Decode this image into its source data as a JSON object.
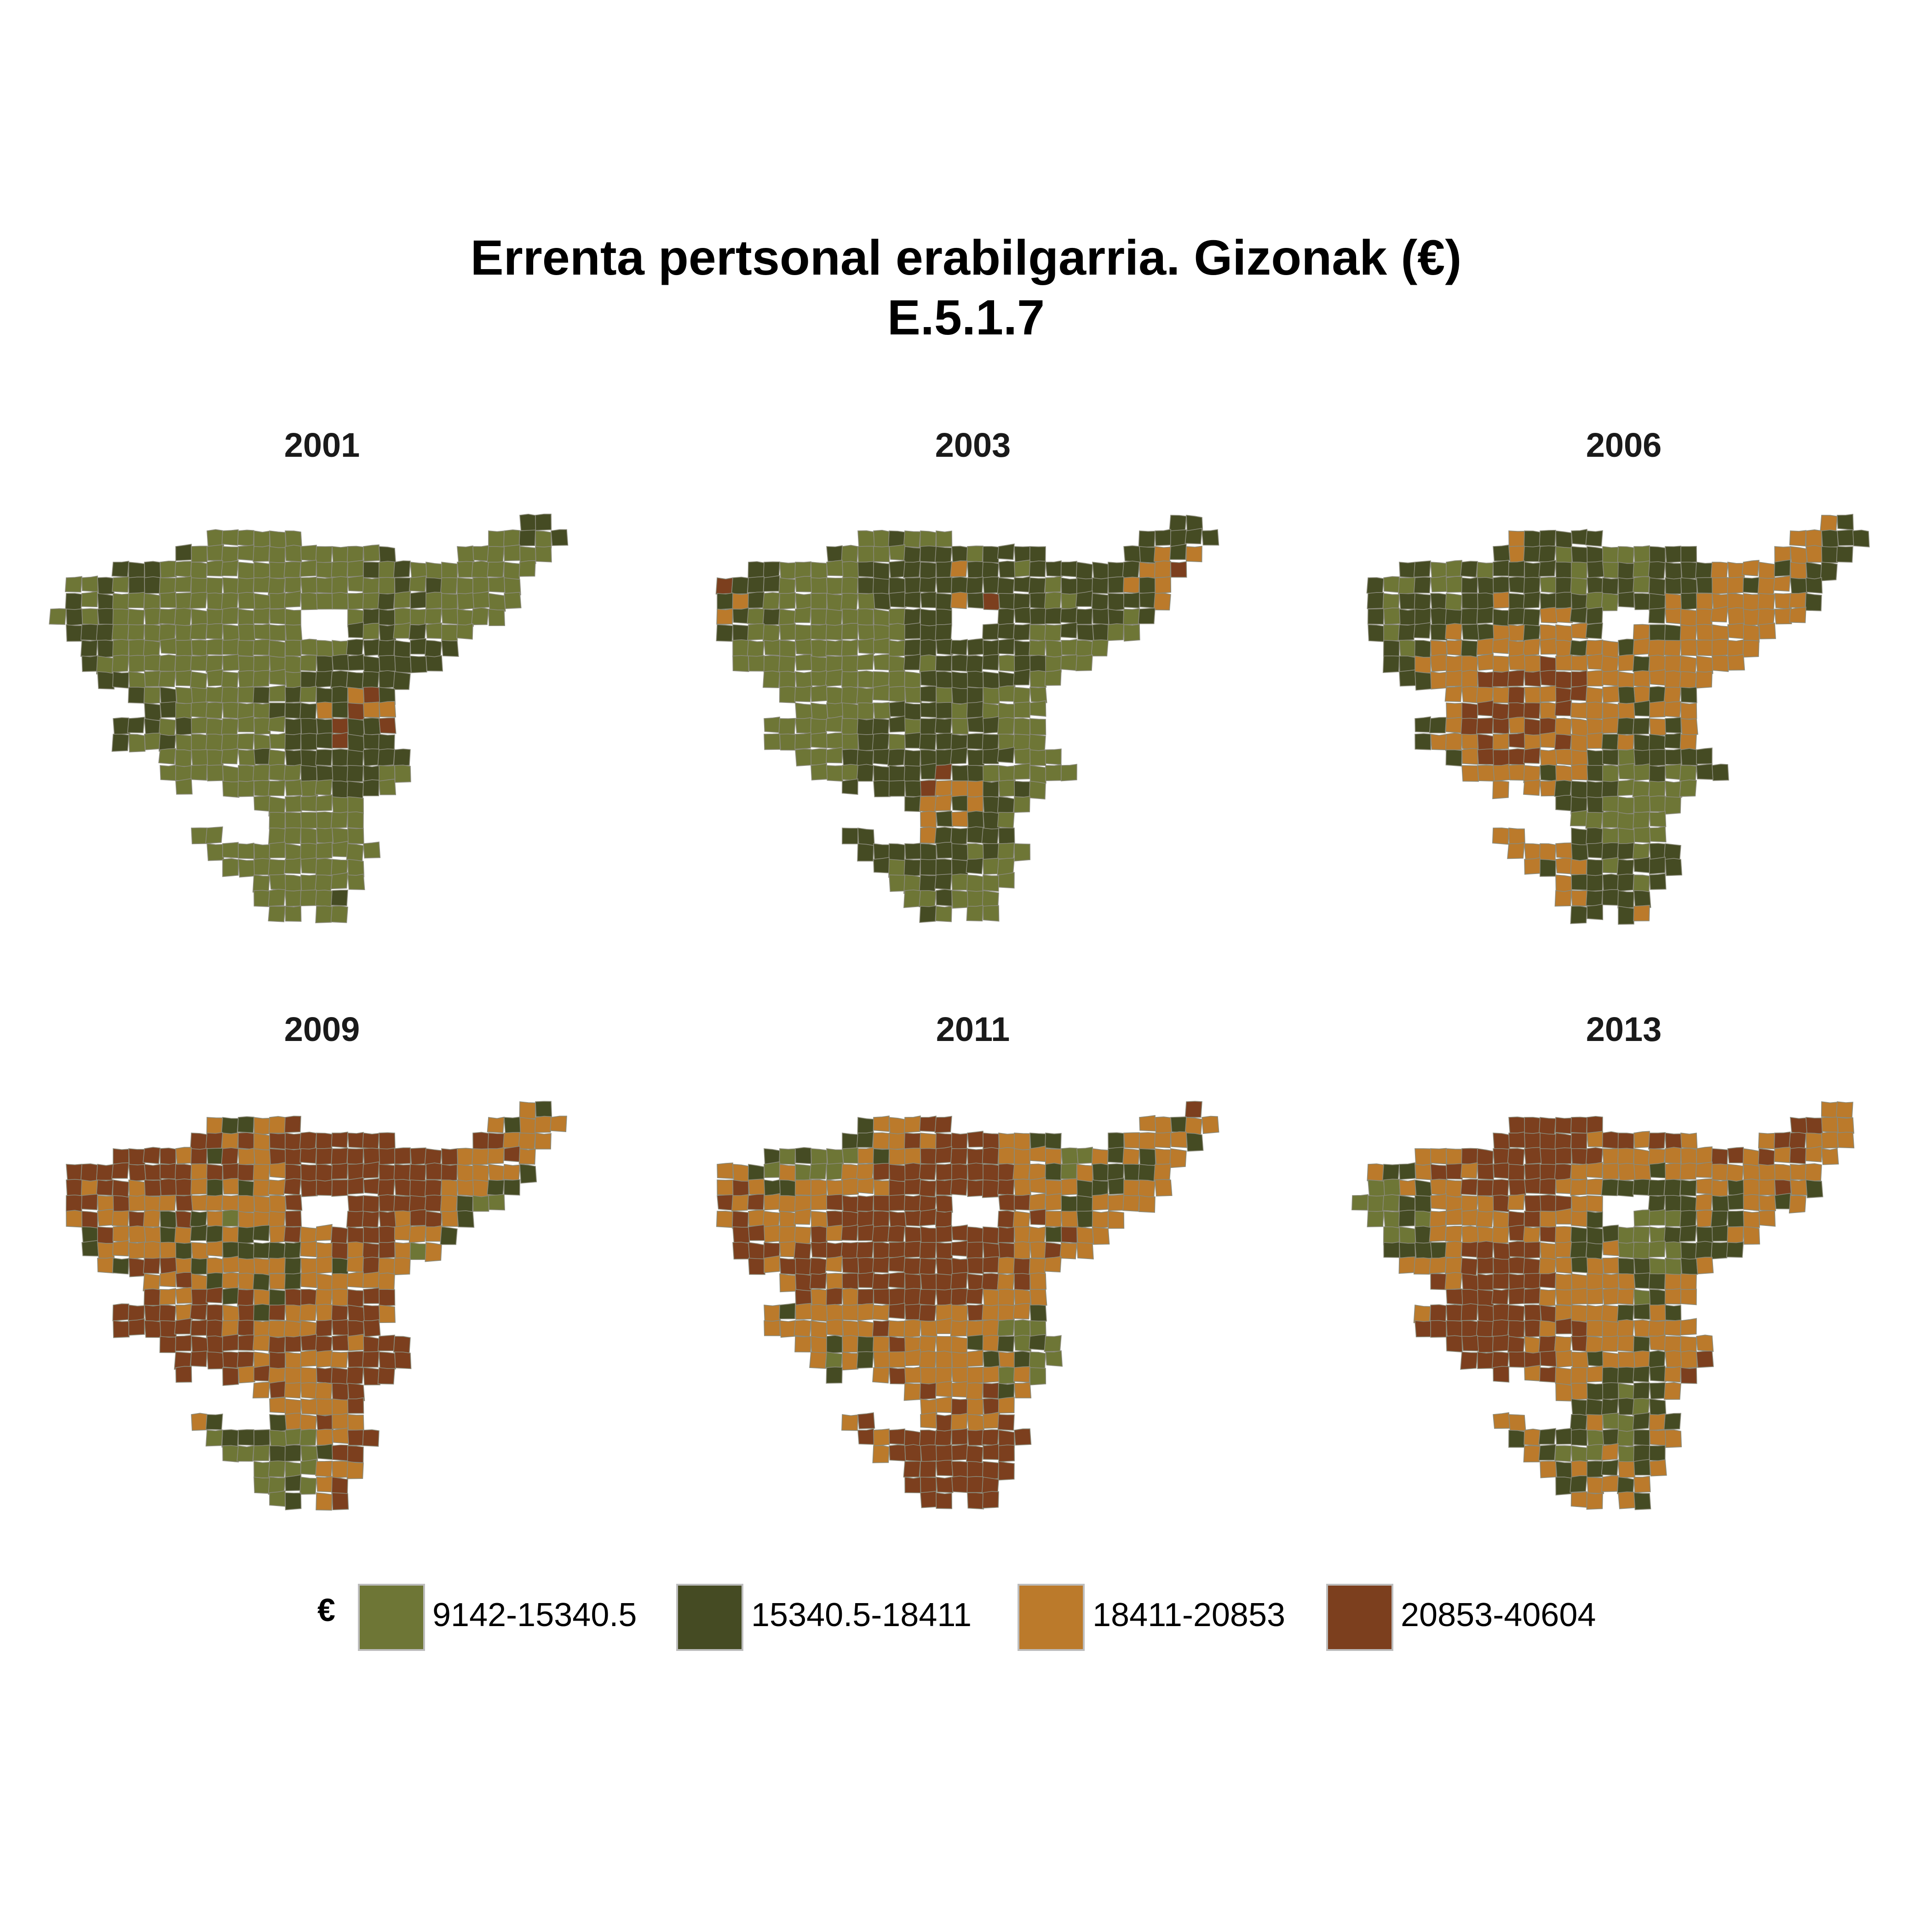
{
  "title": {
    "line1": "Errenta pertsonal erabilgarria. Gizonak (€)",
    "line2": "E.5.1.7"
  },
  "legend": {
    "title": "€",
    "classes": [
      {
        "label": "9142-15340.5",
        "color": "#6e7636"
      },
      {
        "label": "15340.5-18411",
        "color": "#454b23"
      },
      {
        "label": "18411-20853",
        "color": "#bb7a2b"
      },
      {
        "label": "20853-40604",
        "color": "#7c3f1e"
      }
    ]
  },
  "panels": [
    {
      "year": "2001",
      "shares": [
        0.72,
        0.26,
        0.01,
        0.01
      ]
    },
    {
      "year": "2003",
      "shares": [
        0.45,
        0.49,
        0.05,
        0.01
      ]
    },
    {
      "year": "2006",
      "shares": [
        0.13,
        0.4,
        0.4,
        0.07
      ]
    },
    {
      "year": "2009",
      "shares": [
        0.05,
        0.12,
        0.38,
        0.45
      ]
    },
    {
      "year": "2011",
      "shares": [
        0.05,
        0.1,
        0.42,
        0.43
      ]
    },
    {
      "year": "2013",
      "shares": [
        0.08,
        0.22,
        0.42,
        0.28
      ]
    }
  ]
}
